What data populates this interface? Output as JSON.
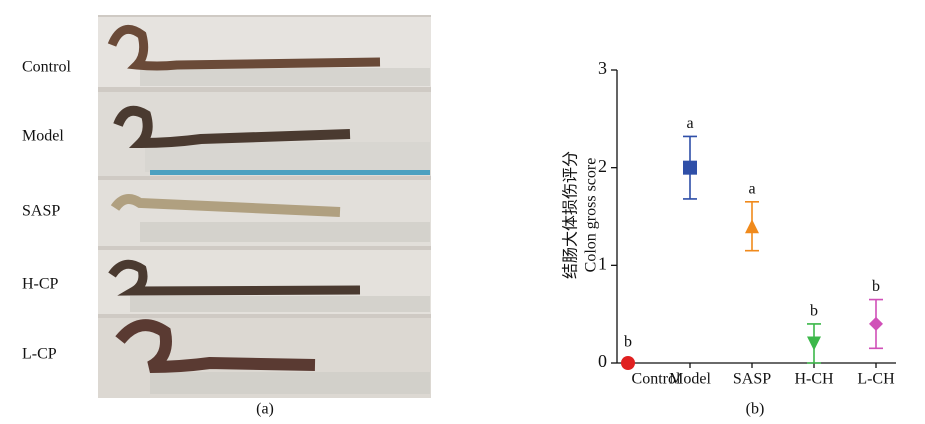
{
  "panel_a": {
    "labels": [
      "Control",
      "Model",
      "SASP",
      "H-CP",
      "L-CP"
    ],
    "caption": "(a)"
  },
  "chart_data": {
    "type": "errorbar",
    "y_label": [
      "结肠大体损伤评分",
      "Colon  gross  score"
    ],
    "categories": [
      "Control",
      "Model",
      "SASP",
      "H-CH",
      "L-CH"
    ],
    "values": [
      0,
      2.0,
      1.4,
      0.2,
      0.4
    ],
    "errors": [
      0,
      0.32,
      0.25,
      0.2,
      0.25
    ],
    "annotations": [
      "b",
      "a",
      "a",
      "b",
      "b"
    ],
    "colors": [
      "#e02020",
      "#2f4fa8",
      "#f08a1c",
      "#3cb84a",
      "#d050b8"
    ],
    "markers": [
      "circle",
      "square",
      "triangle-up",
      "triangle-down",
      "diamond"
    ],
    "ylim": [
      0,
      3
    ],
    "yticks": [
      0,
      1,
      2,
      3
    ],
    "caption": "(b)"
  }
}
